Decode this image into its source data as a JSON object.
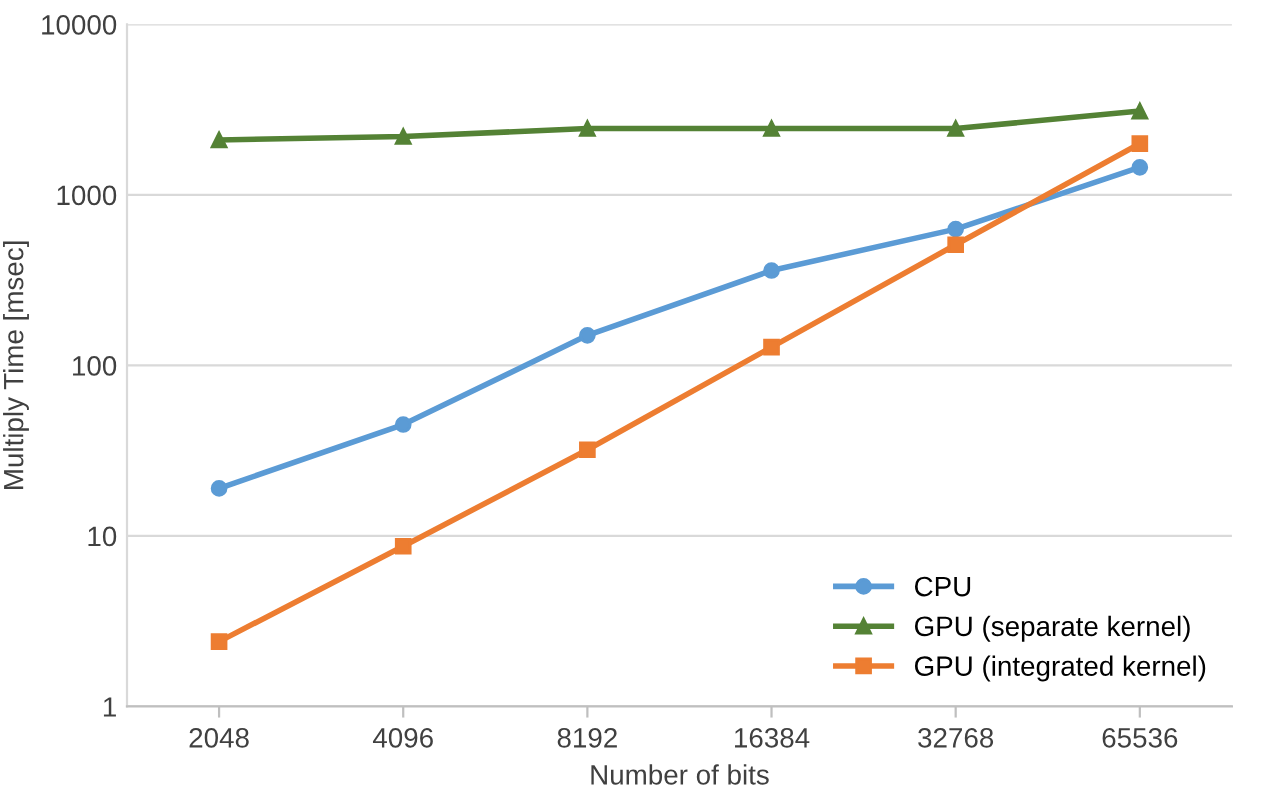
{
  "chart_data": {
    "type": "line",
    "xlabel": "Number of bits",
    "ylabel": "Multiply Time [msec]",
    "categories": [
      "2048",
      "4096",
      "8192",
      "16384",
      "32768",
      "65536"
    ],
    "series": [
      {
        "name": "CPU",
        "color": "#5b9bd5",
        "marker": "circle",
        "values": [
          19,
          45,
          150,
          360,
          630,
          1450
        ]
      },
      {
        "name": "GPU (separate kernel)",
        "color": "#548235",
        "marker": "triangle",
        "values": [
          2100,
          2200,
          2450,
          2450,
          2450,
          3100
        ]
      },
      {
        "name": "GPU (integrated kernel)",
        "color": "#ed7d31",
        "marker": "square",
        "values": [
          2.4,
          8.7,
          32,
          128,
          510,
          2000
        ]
      }
    ],
    "log": "y",
    "ylim": [
      1,
      10000
    ],
    "yticks": [
      1,
      10,
      100,
      1000,
      10000
    ],
    "grid": "y",
    "legend": "lower right"
  }
}
